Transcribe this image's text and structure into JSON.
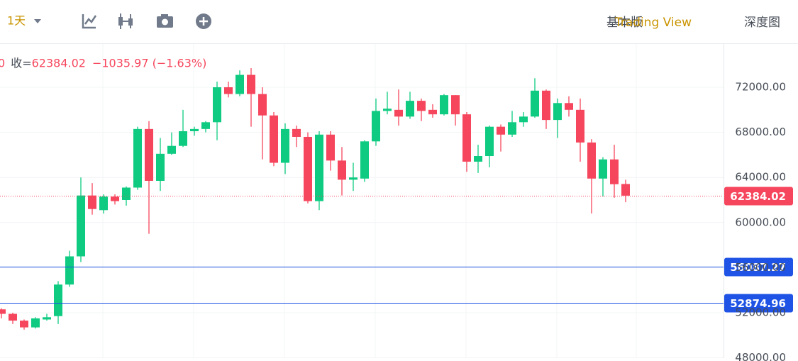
{
  "toolbar": {
    "interval": "1天",
    "views": [
      "基本版",
      "Trading View",
      "深度图"
    ],
    "active_view": 1
  },
  "chart_data": {
    "type": "candlestick",
    "header": {
      "prefix": "0",
      "close_label": "收=",
      "close_value": 62384.02,
      "change": "−1035.97 (−1.63%)"
    },
    "up_color": "#0ecb81",
    "down_color": "#f6465d",
    "open": [
      52300,
      51900,
      51300,
      50700,
      51400,
      51700,
      54500,
      57000,
      62400,
      61100,
      62300,
      62000,
      63100,
      68300,
      63700,
      66100,
      66800,
      68100,
      68300,
      68900,
      72000,
      71400,
      73100,
      71400,
      69500,
      65300,
      68300,
      67600,
      61900,
      67800,
      65500,
      63800,
      63900,
      67200,
      69900,
      70000,
      69400,
      70800,
      70000,
      69600,
      71300,
      69600,
      65400,
      65900,
      68500,
      67800,
      68900,
      69400,
      71700,
      69100,
      70600,
      70000,
      67100,
      63900,
      65600,
      63420
    ],
    "high": [
      52400,
      52000,
      51400,
      51600,
      51900,
      54800,
      57500,
      64000,
      63500,
      62500,
      62500,
      63200,
      68500,
      69000,
      67500,
      68000,
      70000,
      68500,
      69000,
      72500,
      72500,
      73500,
      73700,
      72000,
      69800,
      68800,
      68600,
      68000,
      68100,
      68100,
      66700,
      65300,
      67300,
      71000,
      71600,
      71800,
      71600,
      71000,
      70500,
      71400,
      71300,
      69800,
      66900,
      68600,
      68700,
      69900,
      69800,
      72800,
      71800,
      71000,
      71200,
      71000,
      67400,
      65800,
      66900,
      63800
    ],
    "low": [
      51500,
      51000,
      50500,
      50600,
      51300,
      51000,
      54300,
      56500,
      60700,
      60800,
      61600,
      61500,
      62900,
      59000,
      62800,
      66000,
      66700,
      67700,
      68000,
      67300,
      71100,
      71200,
      68500,
      65600,
      65000,
      64300,
      66700,
      61700,
      61100,
      64600,
      62400,
      62800,
      63600,
      66800,
      69600,
      68600,
      69200,
      69000,
      69300,
      69500,
      68600,
      64500,
      64400,
      64900,
      66300,
      67600,
      68500,
      69300,
      68300,
      67500,
      69400,
      65400,
      60800,
      62300,
      62200,
      61800
    ],
    "close": [
      51900,
      51300,
      50700,
      51500,
      51600,
      54500,
      57000,
      62400,
      61200,
      62300,
      61900,
      63100,
      68300,
      63700,
      66100,
      66800,
      68100,
      68300,
      68900,
      72000,
      71400,
      73100,
      71400,
      69500,
      65300,
      68300,
      67600,
      61900,
      67800,
      65500,
      63800,
      64000,
      67200,
      69900,
      70100,
      69400,
      70800,
      69900,
      69600,
      71300,
      69600,
      65400,
      65900,
      68500,
      67800,
      68900,
      69400,
      71700,
      69100,
      70600,
      70000,
      67100,
      63900,
      65600,
      63400,
      62384.02
    ],
    "ylim": [
      47970,
      75840
    ],
    "yticks": [
      {
        "value": 48000,
        "label": "48000.00"
      },
      {
        "value": 52000,
        "label": "52000.00"
      },
      {
        "value": 56000,
        "label": "56000.00"
      },
      {
        "value": 60000,
        "label": "60000.00"
      },
      {
        "value": 64000,
        "label": "64000.00"
      },
      {
        "value": 68000,
        "label": "68000.00"
      },
      {
        "value": 72000,
        "label": "72000.00"
      }
    ],
    "price_lines": [
      {
        "value": 62384.02,
        "color": "#f6465d",
        "style": "dotted"
      },
      {
        "value": 56087.27,
        "color": "#1e53e5",
        "style": "solid"
      },
      {
        "value": 52874.96,
        "color": "#1e53e5",
        "style": "solid"
      }
    ],
    "grid": true
  }
}
